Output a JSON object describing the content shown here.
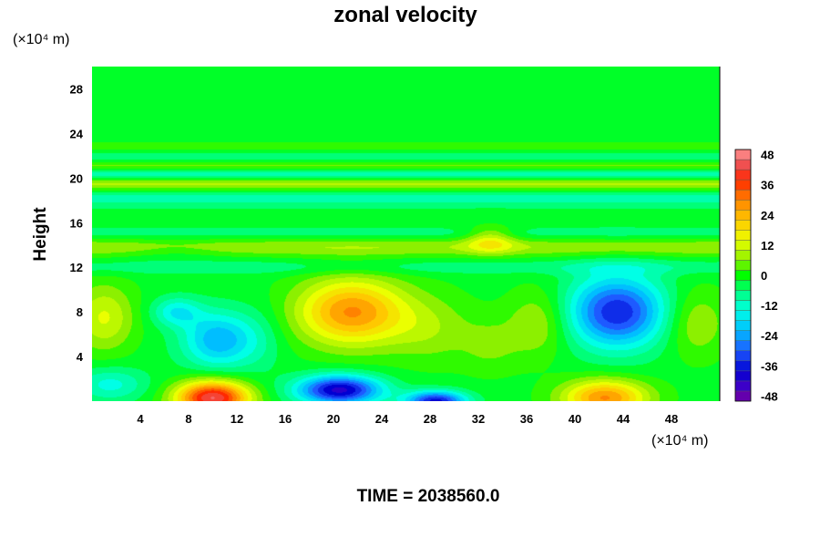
{
  "chart_data": {
    "type": "heatmap",
    "title": "zonal velocity",
    "ylabel": "Height",
    "x_unit": "(×10⁴ m)",
    "y_unit": "(×10⁴ m)",
    "xlim": [
      0,
      52
    ],
    "ylim": [
      0,
      30
    ],
    "x_ticks": [
      4,
      8,
      12,
      16,
      20,
      24,
      28,
      32,
      36,
      40,
      44,
      48
    ],
    "y_ticks": [
      4,
      8,
      12,
      16,
      20,
      24,
      28
    ],
    "colorbar": {
      "range": [
        -50,
        50
      ],
      "ticks": [
        48,
        36,
        24,
        12,
        0,
        -12,
        -24,
        -36,
        -48
      ],
      "interval": 4
    },
    "features": [
      {
        "x": 10,
        "y": 0.3,
        "value": 46,
        "rx": 3,
        "ry": 1.5
      },
      {
        "x": 20.5,
        "y": 1.0,
        "value": -40,
        "rx": 3.5,
        "ry": 1.3
      },
      {
        "x": 28.5,
        "y": 0.0,
        "value": -36,
        "rx": 2.5,
        "ry": 0.9
      },
      {
        "x": 42.5,
        "y": 0.3,
        "value": 30,
        "rx": 3.5,
        "ry": 1.6
      },
      {
        "x": 1.5,
        "y": 1.5,
        "value": -12,
        "rx": 3,
        "ry": 1.5
      },
      {
        "x": 21.5,
        "y": 8.0,
        "value": 30,
        "rx": 4.5,
        "ry": 3
      },
      {
        "x": 43.5,
        "y": 8.0,
        "value": -34,
        "rx": 4,
        "ry": 3.2
      },
      {
        "x": 10.5,
        "y": 5.5,
        "value": -22,
        "rx": 3,
        "ry": 2.5
      },
      {
        "x": 7,
        "y": 8.0,
        "value": -14,
        "rx": 2,
        "ry": 1.3
      },
      {
        "x": 1,
        "y": 7.5,
        "value": 14,
        "rx": 2.5,
        "ry": 3
      },
      {
        "x": 28,
        "y": 6.5,
        "value": 8,
        "rx": 3.5,
        "ry": 3
      },
      {
        "x": 37,
        "y": 7.0,
        "value": 10,
        "rx": 2.5,
        "ry": 3
      },
      {
        "x": 50,
        "y": 7.0,
        "value": 10,
        "rx": 2.5,
        "ry": 3
      },
      {
        "x": 33,
        "y": 5.0,
        "value": 6,
        "rx": 2.5,
        "ry": 2.5
      },
      {
        "x": 14,
        "y": 5.5,
        "value": -4,
        "rx": 2,
        "ry": 3
      },
      {
        "x": 33,
        "y": 14.5,
        "value": 14,
        "rx": 2,
        "ry": 1.2
      },
      {
        "x": 7,
        "y": 13.5,
        "value": -4,
        "rx": 4,
        "ry": 0.8
      }
    ],
    "layers": [
      {
        "y": 12.0,
        "value": -5,
        "h": 0.7
      },
      {
        "y": 13.8,
        "value": 9,
        "h": 0.8
      },
      {
        "y": 15.0,
        "value": -4,
        "h": 0.6
      },
      {
        "y": 16.5,
        "value": -2,
        "h": 1.0
      },
      {
        "y": 18.2,
        "value": -8,
        "h": 0.7
      },
      {
        "y": 19.5,
        "value": 11,
        "h": 0.6
      },
      {
        "y": 20.3,
        "value": -11,
        "h": 0.5
      },
      {
        "y": 21.1,
        "value": 7,
        "h": 0.5
      },
      {
        "y": 21.9,
        "value": -6,
        "h": 0.5
      },
      {
        "y": 22.7,
        "value": 3,
        "h": 0.6
      }
    ],
    "time_label": "TIME = 2038560.0"
  }
}
